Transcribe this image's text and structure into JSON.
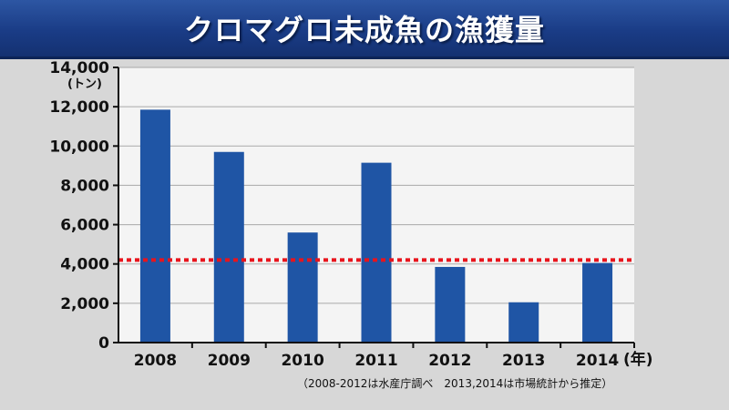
{
  "header": {
    "title": "クロマグロ未成魚の漁獲量"
  },
  "chart_data": {
    "type": "bar",
    "title": "クロマグロ未成魚の漁獲量",
    "ylabel": "(トン)",
    "xlabel": "(年)",
    "categories": [
      "2008",
      "2009",
      "2010",
      "2011",
      "2012",
      "2013",
      "2014"
    ],
    "values": [
      11850,
      9700,
      5600,
      9150,
      3850,
      2050,
      4050
    ],
    "ylim": [
      0,
      14000
    ],
    "yticks": [
      0,
      2000,
      4000,
      6000,
      8000,
      10000,
      12000,
      14000
    ],
    "ytick_labels": [
      "0",
      "2,000",
      "4,000",
      "6,000",
      "8,000",
      "10,000",
      "12,000",
      "14,000"
    ],
    "reference_line": {
      "value": 4200,
      "color": "#e8141c",
      "style": "dotted"
    },
    "bar_color": "#1f55a5",
    "grid": true,
    "note": "（2008-2012は水産庁調べ　2013,2014は市場統計から推定）"
  }
}
